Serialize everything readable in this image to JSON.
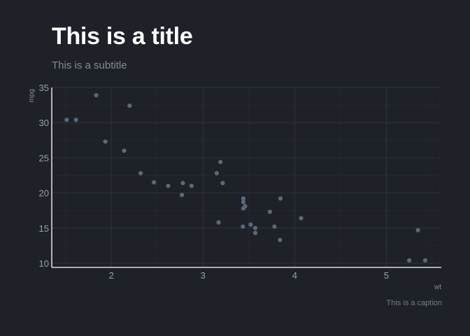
{
  "colors": {
    "background": "#1e2128",
    "grid_major": "#2e333b",
    "grid_minor": "#262a31",
    "axis_line": "#d8dade",
    "point": "#5a6a78",
    "title": "#ffffff",
    "text_muted": "#858a94"
  },
  "chart_data": {
    "type": "scatter",
    "title": "This is a title",
    "subtitle": "This is a subtitle",
    "caption": "This is a caption",
    "xlabel": "wt",
    "ylabel": "mpg",
    "xlim": [
      1.35,
      5.6
    ],
    "ylim": [
      9.4,
      35
    ],
    "x_ticks": [
      2,
      3,
      4,
      5
    ],
    "y_ticks": [
      10,
      15,
      20,
      25,
      30,
      35
    ],
    "x_tick_labels": [
      "2",
      "3",
      "4",
      "5"
    ],
    "y_tick_labels": [
      "10",
      "15",
      "20",
      "25",
      "30",
      "35"
    ],
    "grid": true,
    "points": [
      {
        "x": 2.62,
        "y": 21.0
      },
      {
        "x": 2.875,
        "y": 21.0
      },
      {
        "x": 2.32,
        "y": 22.8
      },
      {
        "x": 3.215,
        "y": 21.4
      },
      {
        "x": 3.44,
        "y": 18.7
      },
      {
        "x": 3.46,
        "y": 18.1
      },
      {
        "x": 3.57,
        "y": 14.3
      },
      {
        "x": 3.19,
        "y": 24.4
      },
      {
        "x": 3.15,
        "y": 22.8
      },
      {
        "x": 3.44,
        "y": 19.2
      },
      {
        "x": 3.44,
        "y": 17.8
      },
      {
        "x": 4.07,
        "y": 16.4
      },
      {
        "x": 3.73,
        "y": 17.3
      },
      {
        "x": 3.78,
        "y": 15.2
      },
      {
        "x": 5.25,
        "y": 10.4
      },
      {
        "x": 5.424,
        "y": 10.4
      },
      {
        "x": 5.345,
        "y": 14.7
      },
      {
        "x": 2.2,
        "y": 32.4
      },
      {
        "x": 1.615,
        "y": 30.4
      },
      {
        "x": 1.835,
        "y": 33.9
      },
      {
        "x": 2.465,
        "y": 21.5
      },
      {
        "x": 3.52,
        "y": 15.5
      },
      {
        "x": 3.435,
        "y": 15.2
      },
      {
        "x": 3.84,
        "y": 13.3
      },
      {
        "x": 3.845,
        "y": 19.2
      },
      {
        "x": 1.935,
        "y": 27.3
      },
      {
        "x": 2.14,
        "y": 26.0
      },
      {
        "x": 1.513,
        "y": 30.4
      },
      {
        "x": 3.17,
        "y": 15.8
      },
      {
        "x": 2.77,
        "y": 19.7
      },
      {
        "x": 3.57,
        "y": 15.0
      },
      {
        "x": 2.78,
        "y": 21.4
      }
    ]
  }
}
